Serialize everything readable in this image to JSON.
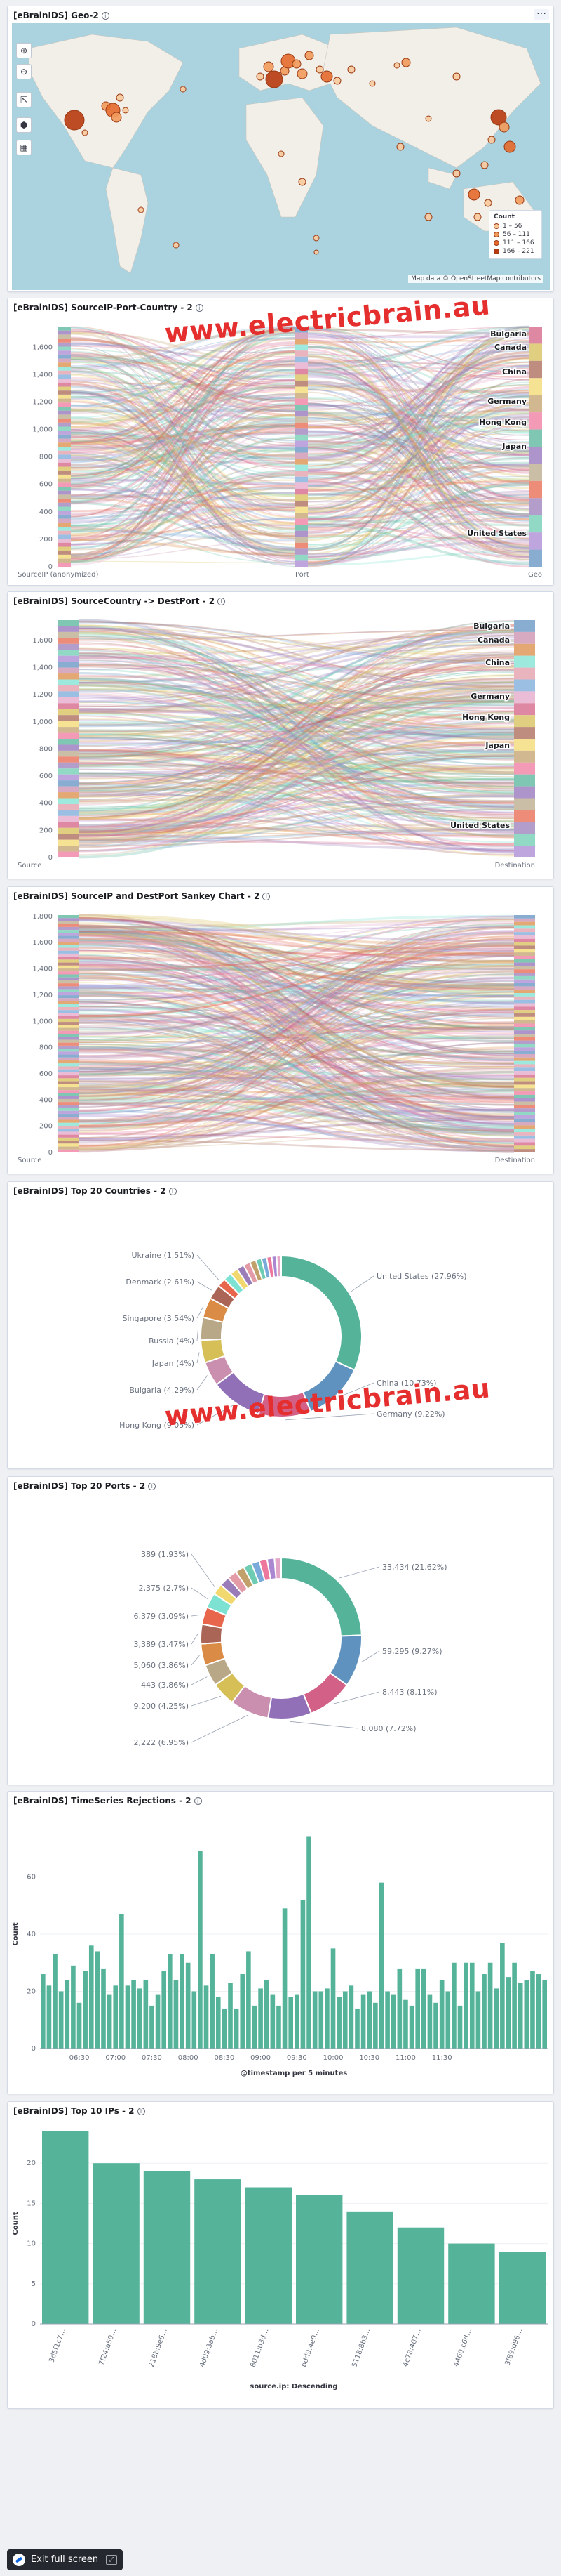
{
  "watermark": "www.electricbrain.au",
  "colors": {
    "teal": "#54b399",
    "blue": "#6092c0",
    "pink": "#d36086",
    "purple": "#9170b8",
    "lightpink": "#ca8eae",
    "yellow": "#d6bf57",
    "brown": "#b9a888",
    "tan": "#da8b45",
    "lightblue": "#aa6556",
    "red": "#e7664c",
    "map_water": "#aad3df",
    "map_land": "#f2efe9",
    "bubble": "#d9662a"
  },
  "panels": {
    "geo": {
      "title": "[eBrainIDS] Geo-2",
      "menu_icon": "ellipsis-icon",
      "controls": [
        "zoom-in-icon",
        "zoom-out-icon",
        "fit-bounds-icon",
        "draw-shape-icon",
        "layers-icon"
      ],
      "legend": {
        "title": "Count",
        "items": [
          "1 – 56",
          "56 – 111",
          "111 – 166",
          "166 – 221"
        ],
        "colors": [
          "#f9c99c",
          "#f29a5b",
          "#e4692b",
          "#b73a10"
        ]
      },
      "attribution": "Map data © OpenStreetMap contributors"
    },
    "sankey1": {
      "title": "[eBrainIDS] SourceIP-Port-Country - 2",
      "axis_labels": [
        "SourceIP (anonymized)",
        "Port",
        "Geo"
      ],
      "countries": [
        "Bulgaria",
        "Canada",
        "China",
        "Germany",
        "Hong Kong",
        "Japan",
        "United States"
      ]
    },
    "sankey2": {
      "title": "[eBrainIDS] SourceCountry -> DestPort - 2",
      "axis_labels": [
        "Source",
        "Destination"
      ],
      "countries": [
        "Bulgaria",
        "Canada",
        "China",
        "Germany",
        "Hong Kong",
        "Japan",
        "United States"
      ]
    },
    "sankey3": {
      "title": "[eBrainIDS] SourceIP and DestPort Sankey Chart - 2",
      "axis_labels": [
        "Source",
        "Destination"
      ]
    },
    "countries": {
      "title": "[eBrainIDS] Top 20 Countries - 2"
    },
    "ports": {
      "title": "[eBrainIDS] Top 20 Ports - 2"
    },
    "timeseries": {
      "title": "[eBrainIDS] TimeSeries Rejections - 2"
    },
    "topips": {
      "title": "[eBrainIDS] Top 10 IPs - 2"
    }
  },
  "exit_fullscreen": {
    "label": "Exit full screen",
    "icon": "elastic-logo-icon",
    "key_icon": "fullscreen-key-icon"
  },
  "chart_data": [
    {
      "id": "sankey1",
      "type": "sankey",
      "y_ticks": [
        0,
        200,
        400,
        600,
        800,
        1000,
        1200,
        1400,
        1600
      ],
      "ylim": [
        0,
        1750
      ]
    },
    {
      "id": "sankey2",
      "type": "sankey",
      "y_ticks": [
        0,
        200,
        400,
        600,
        800,
        1000,
        1200,
        1400,
        1600
      ],
      "ylim": [
        0,
        1750
      ]
    },
    {
      "id": "sankey3",
      "type": "sankey",
      "y_ticks": [
        0,
        200,
        400,
        600,
        800,
        1000,
        1200,
        1400,
        1600,
        1800
      ],
      "ylim": [
        0,
        1810
      ]
    },
    {
      "id": "countries",
      "type": "pie",
      "labels": [
        "United States",
        "China",
        "Germany",
        "Hong Kong",
        "Bulgaria",
        "Japan",
        "Russia",
        "Singapore",
        "Denmark",
        "Ukraine"
      ],
      "values": [
        27.96,
        10.73,
        9.22,
        9.05,
        4.29,
        4,
        4,
        3.54,
        2.61,
        1.51
      ],
      "display": [
        "United States (27.96%)",
        "China (10.73%)",
        "Germany (9.22%)",
        "Hong Kong (9.05%)",
        "Bulgaria (4.29%)",
        "Japan (4%)",
        "Russia (4%)",
        "Singapore (3.54%)",
        "Denmark (2.61%)",
        "Ukraine (1.51%)"
      ],
      "other_values": [
        1.45,
        1.4,
        1.3,
        1.2,
        1.1,
        1.0,
        0.95,
        0.9,
        0.85,
        0.8
      ]
    },
    {
      "id": "ports",
      "type": "pie",
      "labels": [
        "33,434",
        "59,295",
        "8,443",
        "8,080",
        "2,222",
        "9,200",
        "443",
        "5,060",
        "3,389",
        "6,379",
        "2,375",
        "389"
      ],
      "values": [
        21.62,
        9.27,
        8.11,
        7.72,
        6.95,
        4.25,
        3.86,
        3.86,
        3.47,
        3.09,
        2.7,
        1.93
      ],
      "display": [
        "33,434 (21.62%)",
        "59,295 (9.27%)",
        "8,443 (8.11%)",
        "8,080 (7.72%)",
        "2,222 (6.95%)",
        "9,200 (4.25%)",
        "443 (3.86%)",
        "5,060 (3.86%)",
        "3,389 (3.47%)",
        "6,379 (3.09%)",
        "2,375 (2.7%)",
        "389 (1.93%)"
      ],
      "other_values": [
        1.8,
        1.7,
        1.6,
        1.5,
        1.45,
        1.4,
        1.3,
        1.2
      ]
    },
    {
      "id": "timeseries",
      "type": "bar",
      "ylabel": "Count",
      "xlabel": "@timestamp per 5 minutes",
      "y_ticks": [
        0,
        20,
        40,
        60
      ],
      "ylim": [
        0,
        80
      ],
      "x_ticks": [
        "06:30",
        "07:00",
        "07:30",
        "08:00",
        "08:30",
        "09:00",
        "09:30",
        "10:00",
        "10:30",
        "11:00",
        "11:30"
      ],
      "values": [
        26,
        22,
        33,
        20,
        24,
        29,
        16,
        27,
        36,
        34,
        28,
        19,
        22,
        47,
        22,
        24,
        21,
        24,
        15,
        19,
        27,
        33,
        24,
        33,
        30,
        20,
        69,
        22,
        33,
        18,
        14,
        23,
        14,
        26,
        34,
        15,
        21,
        24,
        19,
        15,
        49,
        18,
        19,
        52,
        74,
        20,
        20,
        21,
        35,
        18,
        20,
        22,
        14,
        19,
        20,
        16,
        58,
        20,
        19,
        28,
        17,
        15,
        28,
        28,
        19,
        16,
        24,
        20,
        30,
        15,
        30,
        30,
        20,
        26,
        30,
        21,
        37,
        25,
        30,
        23,
        24,
        27,
        26,
        24
      ]
    },
    {
      "id": "topips",
      "type": "bar",
      "ylabel": "Count",
      "xlabel": "source.ip: Descending",
      "y_ticks": [
        0,
        5,
        10,
        15,
        20
      ],
      "ylim": [
        0,
        25
      ],
      "categories": [
        "3d5f1c7…",
        "7f24:a50…",
        "218b:9e6…",
        "4d09:3ab…",
        "8011:b3d…",
        "bdd9:4e0…",
        "5118:8b3…",
        "4c78:407…",
        "4460:c6d…",
        "3f89:d96…"
      ],
      "values": [
        24,
        20,
        19,
        18,
        17,
        16,
        14,
        12,
        10,
        9
      ]
    }
  ]
}
